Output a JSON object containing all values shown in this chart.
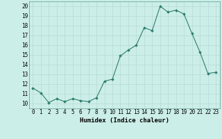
{
  "x": [
    0,
    1,
    2,
    3,
    4,
    5,
    6,
    7,
    8,
    9,
    10,
    11,
    12,
    13,
    14,
    15,
    16,
    17,
    18,
    19,
    20,
    21,
    22,
    23
  ],
  "y": [
    11.6,
    11.1,
    10.1,
    10.5,
    10.2,
    10.5,
    10.3,
    10.2,
    10.6,
    12.3,
    12.5,
    14.9,
    15.5,
    16.0,
    17.8,
    17.5,
    20.0,
    19.4,
    19.6,
    19.2,
    17.2,
    15.3,
    13.1,
    13.2
  ],
  "xlabel": "Humidex (Indice chaleur)",
  "xlim": [
    -0.5,
    23.5
  ],
  "ylim": [
    9.5,
    20.5
  ],
  "yticks": [
    10,
    11,
    12,
    13,
    14,
    15,
    16,
    17,
    18,
    19,
    20
  ],
  "xticks": [
    0,
    1,
    2,
    3,
    4,
    5,
    6,
    7,
    8,
    9,
    10,
    11,
    12,
    13,
    14,
    15,
    16,
    17,
    18,
    19,
    20,
    21,
    22,
    23
  ],
  "line_color": "#2e7d6e",
  "marker_color": "#2e7d6e",
  "bg_color": "#cceee8",
  "grid_color": "#b8ddd8",
  "label_fontsize": 6.5,
  "tick_fontsize": 5.5
}
